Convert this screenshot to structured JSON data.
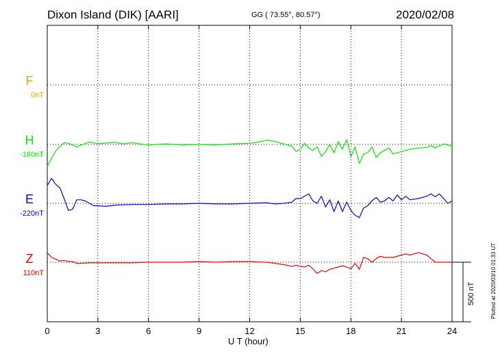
{
  "header": {
    "title": "Dixon Island (DIK)  [AARI]",
    "coords": "GG ( 73.55°,  80.57°)",
    "date": "2020/02/08"
  },
  "footer": {
    "stamp": "Plotted at 2020/03/10 01:33 UT",
    "scale_label": "500 nT"
  },
  "chart_data": {
    "type": "line",
    "xlabel": "U T (hour)",
    "xlim": [
      0,
      24
    ],
    "xticks": [
      0,
      3,
      6,
      9,
      12,
      15,
      18,
      21,
      24
    ],
    "grid": true,
    "scale_bar_nT": 500,
    "series": [
      {
        "name": "F",
        "offset_label": "0nT",
        "color": "#f5a000",
        "data_visible": false,
        "x": [],
        "y": []
      },
      {
        "name": "H",
        "offset_label": "-160nT",
        "color": "#00ee00",
        "x": [
          0,
          0.25,
          0.5,
          0.75,
          1.0,
          1.25,
          1.5,
          1.75,
          2.0,
          2.5,
          3.0,
          3.5,
          4.0,
          4.5,
          5.0,
          6.0,
          7.0,
          8.0,
          9.0,
          10.0,
          11.0,
          12.0,
          12.5,
          13.0,
          13.5,
          14.0,
          14.5,
          14.75,
          15.0,
          15.25,
          15.5,
          15.75,
          16.0,
          16.25,
          16.5,
          16.75,
          17.0,
          17.25,
          17.5,
          17.75,
          18.0,
          18.25,
          18.5,
          18.75,
          19.0,
          19.25,
          19.5,
          19.75,
          20.0,
          20.25,
          20.5,
          21.0,
          21.5,
          22.0,
          22.5,
          22.75,
          23.0,
          23.5,
          24.0
        ],
        "y": [
          -185,
          -115,
          -55,
          -15,
          15,
          10,
          -5,
          -20,
          -5,
          20,
          5,
          12,
          18,
          5,
          15,
          -5,
          5,
          -5,
          0,
          -5,
          5,
          10,
          20,
          35,
          25,
          5,
          -15,
          -60,
          -40,
          10,
          -30,
          -50,
          -20,
          -100,
          -60,
          0,
          -70,
          25,
          -40,
          40,
          -100,
          -20,
          -160,
          -80,
          -70,
          -20,
          -110,
          -70,
          -50,
          -30,
          -80,
          -60,
          -40,
          -30,
          -25,
          -10,
          -30,
          5,
          -15
        ]
      },
      {
        "name": "E",
        "offset_label": "-220nT",
        "color": "#0000ee",
        "x": [
          0,
          0.25,
          0.5,
          0.75,
          1.0,
          1.25,
          1.5,
          1.75,
          2.0,
          2.25,
          2.5,
          2.75,
          3.0,
          3.5,
          4.0,
          5.0,
          6.0,
          7.0,
          8.0,
          9.0,
          10.0,
          11.0,
          12.0,
          13.0,
          13.5,
          14.0,
          14.5,
          14.75,
          15.0,
          15.25,
          15.5,
          15.75,
          16.0,
          16.25,
          16.5,
          16.75,
          17.0,
          17.25,
          17.5,
          17.75,
          18.0,
          18.25,
          18.5,
          18.75,
          19.0,
          19.25,
          19.5,
          19.75,
          20.0,
          20.25,
          20.5,
          20.75,
          21.0,
          21.25,
          21.5,
          22.0,
          22.5,
          22.75,
          23.0,
          23.25,
          23.5,
          23.75,
          24.0
        ],
        "y": [
          150,
          210,
          160,
          130,
          40,
          -60,
          -50,
          30,
          30,
          20,
          0,
          -20,
          -20,
          -25,
          -15,
          -10,
          -10,
          -5,
          -5,
          0,
          -5,
          -5,
          0,
          5,
          -5,
          0,
          10,
          40,
          40,
          60,
          80,
          20,
          0,
          60,
          -30,
          30,
          -70,
          20,
          -70,
          10,
          -60,
          -100,
          -120,
          -40,
          -20,
          20,
          50,
          10,
          20,
          50,
          20,
          70,
          30,
          60,
          30,
          40,
          60,
          80,
          55,
          80,
          40,
          0,
          20
        ]
      },
      {
        "name": "Z",
        "offset_label": "110nT",
        "color": "#ee0000",
        "x": [
          0,
          0.25,
          0.5,
          0.75,
          1.0,
          1.25,
          1.5,
          1.75,
          2.0,
          2.5,
          3.0,
          4.0,
          5.0,
          6.0,
          7.0,
          8.0,
          9.0,
          10.0,
          11.0,
          12.0,
          13.0,
          13.5,
          14.0,
          14.5,
          14.75,
          15.0,
          15.25,
          15.5,
          15.75,
          16.0,
          16.25,
          16.5,
          16.75,
          17.0,
          17.25,
          17.5,
          17.75,
          18.0,
          18.25,
          18.5,
          18.75,
          19.0,
          19.25,
          19.5,
          19.75,
          20.0,
          20.5,
          21.0,
          21.25,
          21.5,
          22.0,
          22.5,
          22.75,
          23.0,
          23.5,
          24.0
        ],
        "y": [
          80,
          40,
          25,
          10,
          15,
          5,
          5,
          -10,
          -10,
          -5,
          -5,
          -5,
          -5,
          0,
          0,
          0,
          5,
          0,
          5,
          5,
          0,
          -10,
          -20,
          -35,
          -25,
          -35,
          -40,
          -25,
          -55,
          -95,
          -70,
          -80,
          -60,
          -50,
          -40,
          -30,
          -40,
          -55,
          -10,
          -60,
          40,
          30,
          0,
          30,
          50,
          40,
          40,
          60,
          70,
          60,
          80,
          60,
          30,
          0,
          0,
          0
        ]
      }
    ]
  }
}
